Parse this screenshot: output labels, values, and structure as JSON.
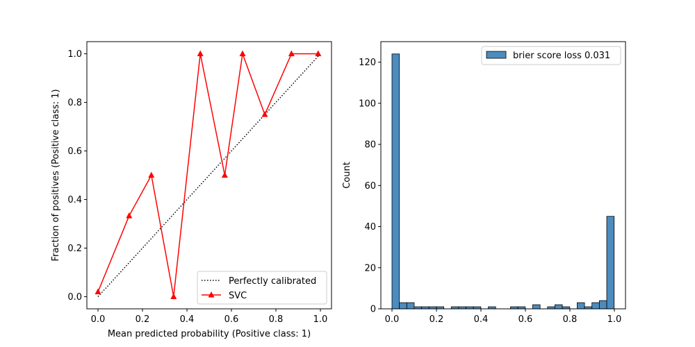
{
  "chart_data": [
    {
      "type": "line",
      "title": "",
      "xlabel": "Mean predicted probability (Positive class: 1)",
      "ylabel": "Fraction of positives (Positive class: 1)",
      "xlim": [
        -0.05,
        1.05
      ],
      "ylim": [
        -0.05,
        1.05
      ],
      "xticks": [
        "0.0",
        "0.2",
        "0.4",
        "0.6",
        "0.8",
        "1.0"
      ],
      "yticks": [
        "0.0",
        "0.2",
        "0.4",
        "0.6",
        "0.8",
        "1.0"
      ],
      "grid": false,
      "legend_position": "lower-right",
      "series": [
        {
          "name": "Perfectly calibrated",
          "color": "#000000",
          "style": "dotted",
          "x": [
            0,
            1
          ],
          "y": [
            0,
            1
          ]
        },
        {
          "name": "SVC",
          "color": "#ff0000",
          "marker": "triangle",
          "x": [
            0.0,
            0.14,
            0.24,
            0.34,
            0.46,
            0.57,
            0.65,
            0.75,
            0.87,
            0.99
          ],
          "y": [
            0.02,
            0.333,
            0.5,
            0.0,
            1.0,
            0.5,
            1.0,
            0.75,
            1.0,
            1.0
          ]
        }
      ]
    },
    {
      "type": "bar",
      "title": "",
      "xlabel": "",
      "ylabel": "Count",
      "xlim": [
        -0.05,
        1.05
      ],
      "ylim": [
        0,
        130
      ],
      "xticks": [
        "0.0",
        "0.2",
        "0.4",
        "0.6",
        "0.8",
        "1.0"
      ],
      "yticks": [
        "0",
        "20",
        "40",
        "60",
        "80",
        "100",
        "120"
      ],
      "grid": false,
      "legend_position": "top-right",
      "bin_width": 0.0333,
      "bin_start": 0.0,
      "color": "#4c8cbf",
      "series": [
        {
          "name": "brier score loss 0.031",
          "values": [
            124,
            3,
            3,
            1,
            1,
            1,
            1,
            0,
            1,
            1,
            1,
            1,
            0,
            1,
            0,
            0,
            1,
            1,
            0,
            2,
            0,
            1,
            2,
            1,
            0,
            3,
            1,
            3,
            4,
            45
          ]
        }
      ]
    }
  ]
}
